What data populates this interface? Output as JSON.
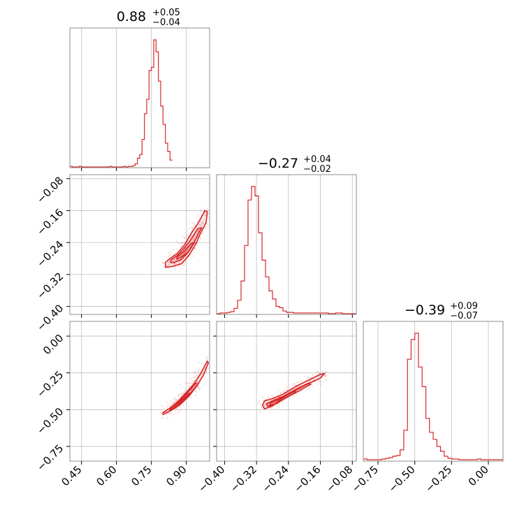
{
  "chart_data": {
    "type": "corner",
    "color": "#d62728",
    "grid": true,
    "parameters": [
      {
        "median": "0.88",
        "plus": "+0.05",
        "minus": "−0.04",
        "lim": [
          0.4,
          1.0
        ],
        "ticks": [
          0.45,
          0.6,
          0.75,
          0.9
        ],
        "ticklabels": [
          "0.45",
          "0.60",
          "0.75",
          "0.90"
        ]
      },
      {
        "median": "−0.27",
        "plus": "+0.04",
        "minus": "−0.02",
        "lim": [
          -0.42,
          -0.07
        ],
        "ticks": [
          -0.4,
          -0.32,
          -0.24,
          -0.16,
          -0.08
        ],
        "ticklabels": [
          "−0.40",
          "−0.32",
          "−0.24",
          "−0.16",
          "−0.08"
        ]
      },
      {
        "median": "−0.39",
        "plus": "+0.09",
        "minus": "−0.07",
        "lim": [
          -0.85,
          0.1
        ],
        "ticks": [
          -0.75,
          -0.5,
          -0.25,
          0.0
        ],
        "ticklabels": [
          "−0.75",
          "−0.50",
          "−0.25",
          "0.00"
        ]
      }
    ],
    "histograms": [
      {
        "bin_start": 0.4,
        "bin_width": 0.01,
        "counts": [
          1,
          0,
          0,
          0,
          1,
          0,
          0,
          0,
          0,
          0,
          0,
          0,
          0,
          0,
          0,
          0,
          0,
          1,
          0,
          0,
          0,
          0,
          0,
          1,
          0,
          1,
          1,
          2,
          5,
          14,
          20,
          44,
          85,
          108,
          154,
          159,
          203,
          184,
          137,
          97,
          68,
          38,
          25,
          11
        ]
      },
      {
        "bin_start": -0.42,
        "bin_width": 0.00875,
        "counts": [
          0,
          1,
          1,
          2,
          3,
          8,
          20,
          49,
          102,
          170,
          190,
          176,
          121,
          80,
          55,
          34,
          22,
          11,
          9,
          4,
          2,
          2,
          1,
          1,
          1,
          1,
          1,
          1,
          1,
          1,
          1,
          1,
          0,
          0,
          1,
          1,
          0,
          0,
          0,
          0
        ]
      },
      {
        "bin_start": -0.85,
        "bin_width": 0.025,
        "counts": [
          2,
          1,
          1,
          1,
          1,
          2,
          3,
          4,
          6,
          7,
          15,
          43,
          144,
          172,
          181,
          133,
          105,
          60,
          40,
          30,
          20,
          13,
          6,
          3,
          2,
          2,
          1,
          1,
          1,
          1,
          1,
          2,
          1,
          1,
          1,
          1,
          1,
          1
        ]
      }
    ],
    "pairs": [
      {
        "x": 0,
        "y": 1,
        "contours": [
          [
            [
              0.81,
              -0.29
            ],
            [
              0.83,
              -0.28
            ],
            [
              0.86,
              -0.268
            ],
            [
              0.89,
              -0.248
            ],
            [
              0.92,
              -0.218
            ],
            [
              0.95,
              -0.192
            ],
            [
              0.98,
              -0.16
            ],
            [
              0.99,
              -0.163
            ],
            [
              0.985,
              -0.19
            ],
            [
              0.96,
              -0.218
            ],
            [
              0.94,
              -0.245
            ],
            [
              0.91,
              -0.273
            ],
            [
              0.88,
              -0.293
            ],
            [
              0.84,
              -0.3
            ],
            [
              0.81,
              -0.302
            ]
          ],
          [
            [
              0.835,
              -0.283
            ],
            [
              0.86,
              -0.273
            ],
            [
              0.89,
              -0.255
            ],
            [
              0.92,
              -0.232
            ],
            [
              0.95,
              -0.205
            ],
            [
              0.965,
              -0.203
            ],
            [
              0.94,
              -0.232
            ],
            [
              0.91,
              -0.263
            ],
            [
              0.88,
              -0.282
            ],
            [
              0.85,
              -0.29
            ],
            [
              0.832,
              -0.29
            ]
          ],
          [
            [
              0.86,
              -0.276
            ],
            [
              0.89,
              -0.262
            ],
            [
              0.92,
              -0.243
            ],
            [
              0.935,
              -0.24
            ],
            [
              0.91,
              -0.263
            ],
            [
              0.88,
              -0.276
            ],
            [
              0.86,
              -0.281
            ]
          ]
        ]
      },
      {
        "x": 0,
        "y": 2,
        "contours": [
          [
            [
              0.8,
              -0.52
            ],
            [
              0.83,
              -0.49
            ],
            [
              0.86,
              -0.45
            ],
            [
              0.89,
              -0.4
            ],
            [
              0.93,
              -0.33
            ],
            [
              0.96,
              -0.26
            ],
            [
              0.99,
              -0.17
            ],
            [
              0.995,
              -0.18
            ],
            [
              0.975,
              -0.26
            ],
            [
              0.945,
              -0.34
            ],
            [
              0.91,
              -0.41
            ],
            [
              0.87,
              -0.47
            ],
            [
              0.83,
              -0.51
            ],
            [
              0.8,
              -0.532
            ]
          ],
          [
            [
              0.83,
              -0.5
            ],
            [
              0.86,
              -0.46
            ],
            [
              0.89,
              -0.41
            ],
            [
              0.92,
              -0.36
            ],
            [
              0.94,
              -0.32
            ],
            [
              0.95,
              -0.325
            ],
            [
              0.925,
              -0.375
            ],
            [
              0.89,
              -0.43
            ],
            [
              0.86,
              -0.475
            ],
            [
              0.83,
              -0.507
            ]
          ],
          [
            [
              0.85,
              -0.476
            ],
            [
              0.88,
              -0.437
            ],
            [
              0.91,
              -0.39
            ],
            [
              0.915,
              -0.398
            ],
            [
              0.885,
              -0.447
            ],
            [
              0.855,
              -0.485
            ]
          ]
        ]
      },
      {
        "x": 1,
        "y": 2,
        "contours": [
          [
            [
              -0.305,
              -0.47
            ],
            [
              -0.3,
              -0.44
            ],
            [
              -0.28,
              -0.425
            ],
            [
              -0.25,
              -0.39
            ],
            [
              -0.22,
              -0.34
            ],
            [
              -0.19,
              -0.3
            ],
            [
              -0.16,
              -0.26
            ],
            [
              -0.15,
              -0.255
            ],
            [
              -0.16,
              -0.285
            ],
            [
              -0.195,
              -0.33
            ],
            [
              -0.23,
              -0.38
            ],
            [
              -0.26,
              -0.43
            ],
            [
              -0.28,
              -0.475
            ],
            [
              -0.3,
              -0.495
            ]
          ],
          [
            [
              -0.295,
              -0.46
            ],
            [
              -0.28,
              -0.44
            ],
            [
              -0.25,
              -0.405
            ],
            [
              -0.22,
              -0.36
            ],
            [
              -0.19,
              -0.32
            ],
            [
              -0.185,
              -0.328
            ],
            [
              -0.215,
              -0.375
            ],
            [
              -0.25,
              -0.425
            ],
            [
              -0.275,
              -0.465
            ],
            [
              -0.292,
              -0.478
            ]
          ],
          [
            [
              -0.285,
              -0.455
            ],
            [
              -0.26,
              -0.425
            ],
            [
              -0.23,
              -0.38
            ],
            [
              -0.22,
              -0.378
            ],
            [
              -0.245,
              -0.418
            ],
            [
              -0.272,
              -0.462
            ],
            [
              -0.287,
              -0.47
            ]
          ]
        ]
      }
    ]
  }
}
